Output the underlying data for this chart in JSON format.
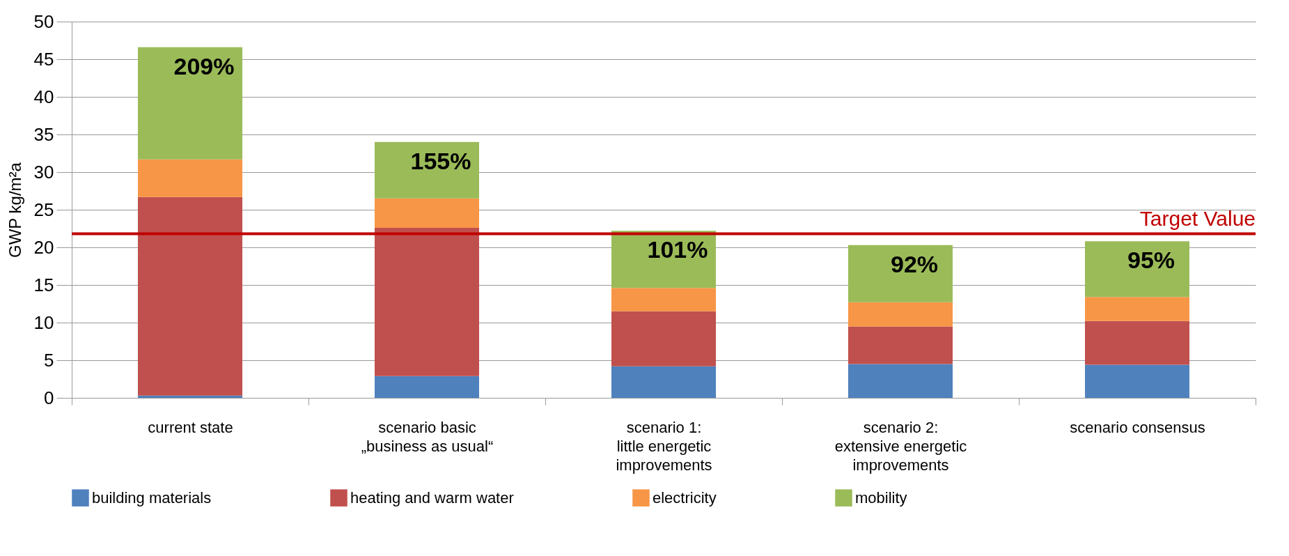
{
  "chart_data": {
    "type": "bar",
    "stacked": true,
    "ylabel": "GWP kg/m²a",
    "categories": [
      "current state",
      "scenario basic\n„business as usual“",
      "scenario 1:\nlittle energetic\nimprovements",
      "scenario 2:\nextensive energetic\nimprovements",
      "scenario consensus"
    ],
    "series": [
      {
        "name": "building materials",
        "color": "#4f81bd",
        "values": [
          0.3,
          2.9,
          4.2,
          4.5,
          4.4
        ]
      },
      {
        "name": "heating and warm water",
        "color": "#c0504d",
        "values": [
          26.4,
          19.7,
          7.3,
          5.0,
          5.8
        ]
      },
      {
        "name": "electricity",
        "color": "#f79646",
        "values": [
          5.0,
          3.9,
          3.1,
          3.2,
          3.2
        ]
      },
      {
        "name": "mobility",
        "color": "#9bbb59",
        "values": [
          14.9,
          7.5,
          7.6,
          7.6,
          7.4
        ]
      }
    ],
    "ylim": [
      0,
      50
    ],
    "yticks": [
      0,
      5,
      10,
      15,
      20,
      25,
      30,
      35,
      40,
      45,
      50
    ],
    "grid": "y",
    "legend": "bottom",
    "ref_lines": [
      {
        "axis": "y",
        "value": 21.8,
        "label": "Target Value",
        "color": "#c00000"
      }
    ],
    "annotations": [
      "209%",
      "155%",
      "101%",
      "92%",
      "95%"
    ]
  }
}
